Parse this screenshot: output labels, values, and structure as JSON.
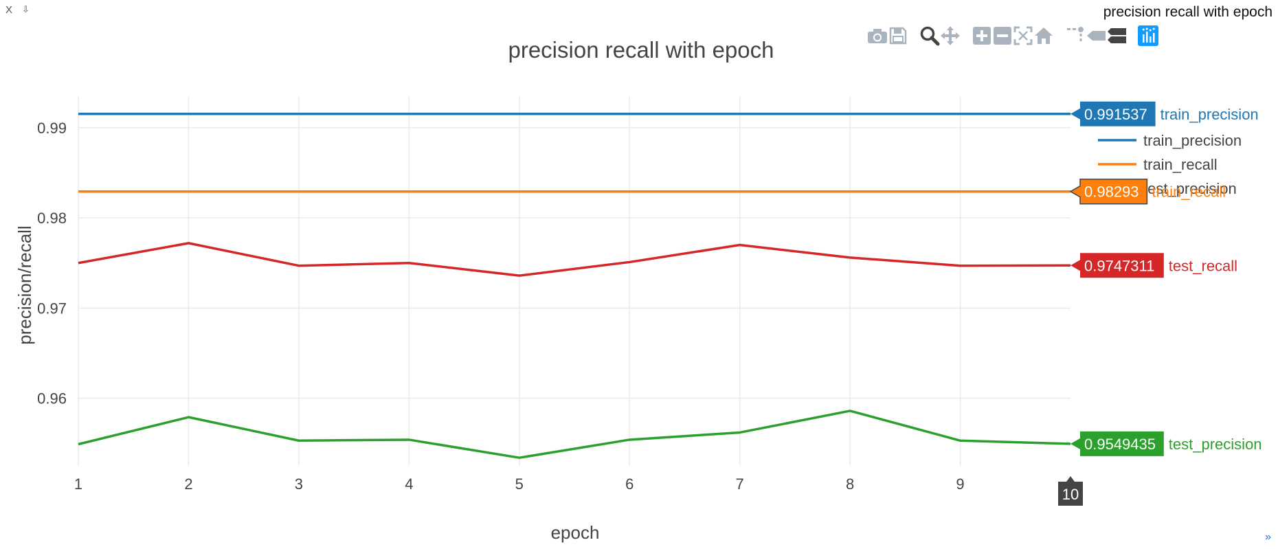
{
  "window": {
    "title": "precision recall with epoch",
    "close_label": "X",
    "pin_label": "⇩"
  },
  "modebar": {
    "buttons": [
      {
        "name": "camera-icon",
        "active": false
      },
      {
        "name": "save-icon",
        "active": false
      },
      {
        "name": "zoom-icon",
        "active": true
      },
      {
        "name": "pan-icon",
        "active": false
      },
      {
        "name": "zoom-in-icon",
        "active": false
      },
      {
        "name": "zoom-out-icon",
        "active": false
      },
      {
        "name": "autoscale-icon",
        "active": false
      },
      {
        "name": "home-icon",
        "active": false
      },
      {
        "name": "spikelines-icon",
        "active": false
      },
      {
        "name": "hover-closest-icon",
        "active": false
      },
      {
        "name": "hover-compare-icon",
        "active": true
      },
      {
        "name": "plotly-logo-icon",
        "active": true
      }
    ]
  },
  "chart_data": {
    "type": "line",
    "title": "precision recall with epoch",
    "xlabel": "epoch",
    "ylabel": "precision/recall",
    "x": [
      1,
      2,
      3,
      4,
      5,
      6,
      7,
      8,
      9,
      10
    ],
    "xlim": [
      1,
      10
    ],
    "ylim": [
      0.9525,
      0.9935
    ],
    "x_ticks": [
      1,
      2,
      3,
      4,
      5,
      6,
      7,
      8,
      9
    ],
    "y_ticks": [
      0.96,
      0.97,
      0.98,
      0.99
    ],
    "y_tick_labels": [
      "0.96",
      "0.97",
      "0.98",
      "0.99"
    ],
    "hover_x_label": "10",
    "grid": true,
    "legend_position": "top-right",
    "series": [
      {
        "name": "train_precision",
        "color": "#1f77b4",
        "values": [
          0.991537,
          0.991537,
          0.991537,
          0.991537,
          0.991537,
          0.991537,
          0.991537,
          0.991537,
          0.991537,
          0.991537
        ],
        "hover_value": "0.991537",
        "in_legend": true
      },
      {
        "name": "train_recall",
        "color": "#ff7f0e",
        "values": [
          0.98293,
          0.98293,
          0.98293,
          0.98293,
          0.98293,
          0.98293,
          0.98293,
          0.98293,
          0.98293,
          0.98293
        ],
        "hover_value": "0.98293",
        "in_legend": true
      },
      {
        "name": "test_precision",
        "color": "#2ca02c",
        "values": [
          0.9549,
          0.9579,
          0.9553,
          0.9554,
          0.9534,
          0.9554,
          0.9562,
          0.9586,
          0.9553,
          0.9549435
        ],
        "hover_value": "0.9549435",
        "in_legend": true
      },
      {
        "name": "test_recall",
        "color": "#d62728",
        "values": [
          0.975,
          0.9772,
          0.9747,
          0.975,
          0.9736,
          0.9751,
          0.977,
          0.9756,
          0.9747,
          0.9747311
        ],
        "hover_value": "0.9747311",
        "in_legend": false
      }
    ]
  }
}
